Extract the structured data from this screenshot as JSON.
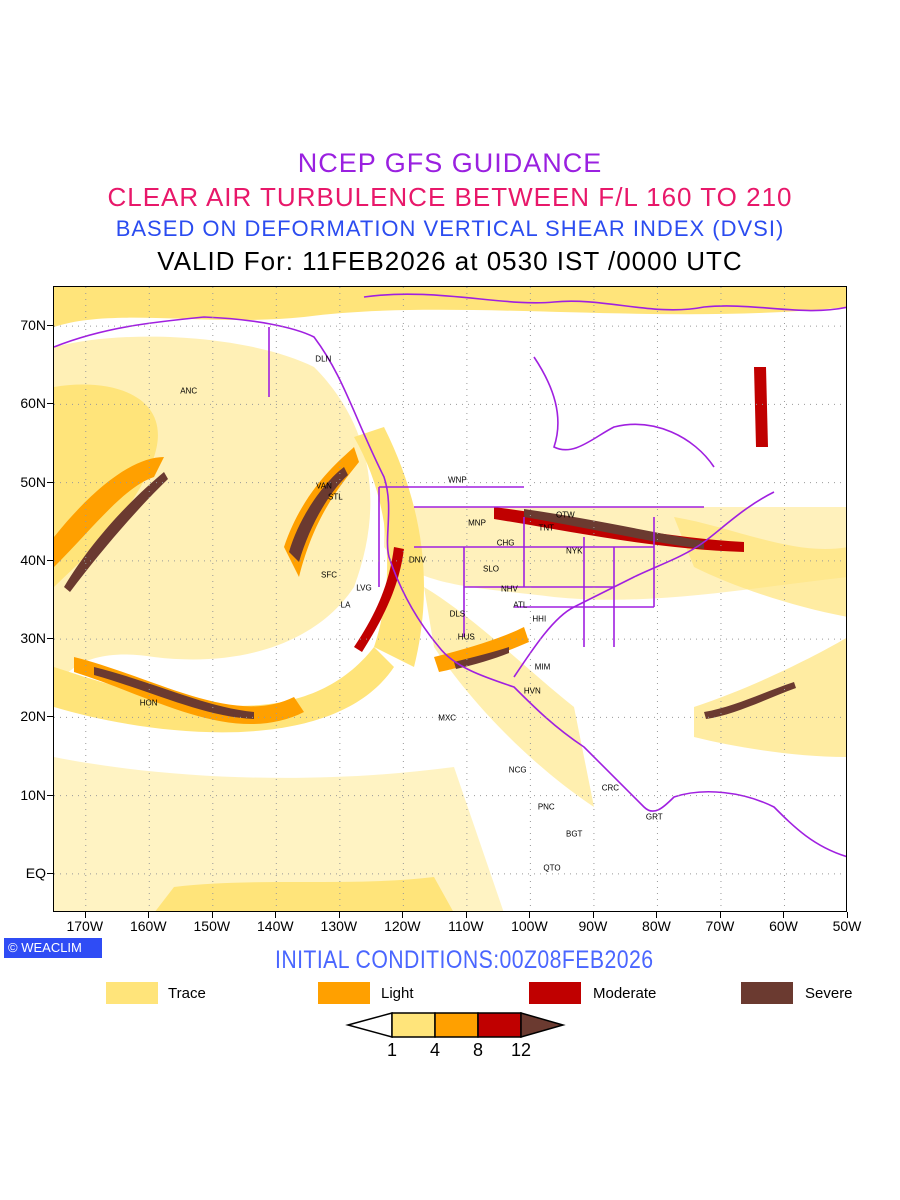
{
  "titles": {
    "line1": "NCEP GFS GUIDANCE",
    "line2": "CLEAR AIR TURBULENCE BETWEEN F/L 160 TO 210",
    "line3": "BASED ON DEFORMATION VERTICAL SHEAR INDEX (DVSI)",
    "line4": "VALID For: 11FEB2026 at 0530 IST /0000 UTC"
  },
  "map": {
    "lon_range": [
      -175,
      -50
    ],
    "lat_range": [
      -5,
      75
    ],
    "lat_labels": [
      "70N",
      "60N",
      "50N",
      "40N",
      "30N",
      "20N",
      "10N",
      "EQ"
    ],
    "lon_labels": [
      "170W",
      "160W",
      "150W",
      "140W",
      "130W",
      "120W",
      "110W",
      "100W",
      "90W",
      "80W",
      "70W",
      "60W",
      "50W"
    ],
    "cities": [
      {
        "name": "DLN",
        "lon": -132.6,
        "lat": 65.8
      },
      {
        "name": "ANC",
        "lon": -153.8,
        "lat": 61.7
      },
      {
        "name": "VAN",
        "lon": -132.5,
        "lat": 49.6
      },
      {
        "name": "STL",
        "lon": -130.7,
        "lat": 48.1
      },
      {
        "name": "WNP",
        "lon": -111.5,
        "lat": 50.3
      },
      {
        "name": "MNP",
        "lon": -108.4,
        "lat": 44.9
      },
      {
        "name": "TNT",
        "lon": -97.5,
        "lat": 44.2
      },
      {
        "name": "OTW",
        "lon": -94.5,
        "lat": 45.8
      },
      {
        "name": "CHG",
        "lon": -103.9,
        "lat": 42.3
      },
      {
        "name": "NYK",
        "lon": -93.1,
        "lat": 41.2
      },
      {
        "name": "DNV",
        "lon": -117.8,
        "lat": 40.1
      },
      {
        "name": "SFC",
        "lon": -131.7,
        "lat": 38.2
      },
      {
        "name": "SLO",
        "lon": -106.2,
        "lat": 39.0
      },
      {
        "name": "LVG",
        "lon": -126.2,
        "lat": 36.5
      },
      {
        "name": "NHV",
        "lon": -103.3,
        "lat": 36.4
      },
      {
        "name": "LA",
        "lon": -129.1,
        "lat": 34.4
      },
      {
        "name": "ATL",
        "lon": -101.6,
        "lat": 34.3
      },
      {
        "name": "DLS",
        "lon": -111.5,
        "lat": 33.2
      },
      {
        "name": "HHI",
        "lon": -98.6,
        "lat": 32.6
      },
      {
        "name": "HUS",
        "lon": -110.1,
        "lat": 30.3
      },
      {
        "name": "MIM",
        "lon": -98.1,
        "lat": 26.4
      },
      {
        "name": "HVN",
        "lon": -99.7,
        "lat": 23.4
      },
      {
        "name": "HON",
        "lon": -160.1,
        "lat": 21.8
      },
      {
        "name": "MXC",
        "lon": -113.1,
        "lat": 19.9
      },
      {
        "name": "NCG",
        "lon": -102.0,
        "lat": 13.3
      },
      {
        "name": "CRC",
        "lon": -87.4,
        "lat": 11.0
      },
      {
        "name": "PNC",
        "lon": -97.5,
        "lat": 8.5
      },
      {
        "name": "GRT",
        "lon": -80.5,
        "lat": 7.3
      },
      {
        "name": "BGT",
        "lon": -93.1,
        "lat": 5.1
      },
      {
        "name": "QTO",
        "lon": -96.6,
        "lat": 0.7
      }
    ]
  },
  "logo": "WEACLIM",
  "initial_conditions": "INITIAL CONDITIONS:00Z08FEB2026",
  "legend": [
    {
      "label": "Trace",
      "color": "#ffe47a"
    },
    {
      "label": "Light",
      "color": "#ffa000"
    },
    {
      "label": "Moderate",
      "color": "#c00000"
    },
    {
      "label": "Severe",
      "color": "#6b3a30"
    }
  ],
  "colorbar": {
    "labels": [
      "1",
      "4",
      "8",
      "12"
    ]
  },
  "colors": {
    "coast": "#a020e0"
  }
}
